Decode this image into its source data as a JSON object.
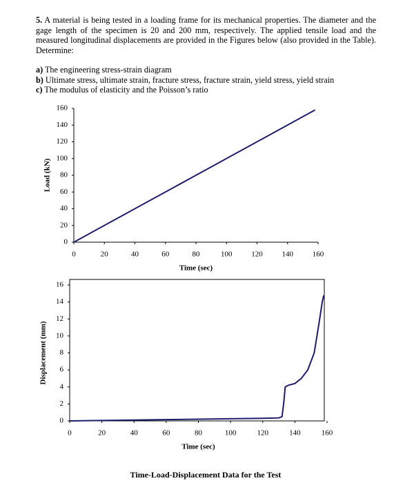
{
  "problem": {
    "number": "5.",
    "text": "A material is being tested in a loading frame for its mechanical properties. The diameter and the gage length of the specimen is 20 and 200 mm, respectively. The applied tensile load and the measured longitudinal displacements are provided in the Figures below (also provided in the Table). Determine:"
  },
  "items": [
    {
      "label": "a)",
      "text": "The engineering stress-strain diagram"
    },
    {
      "label": "b)",
      "text": "Ultimate stress, ultimate strain, fracture stress, fracture strain, yield stress, yield strain"
    },
    {
      "label": "c)",
      "text": "The modulus of elasticity and the Poisson’s ratio"
    }
  ],
  "chart_data": [
    {
      "type": "line",
      "x_label": "Time (sec)",
      "y_label": "Load (kN)",
      "x": [
        0,
        158
      ],
      "values": [
        0,
        158
      ],
      "color": "#1c1c6b",
      "xlim": [
        0,
        160
      ],
      "xticks": [
        0,
        20,
        40,
        60,
        80,
        100,
        120,
        140,
        160
      ],
      "ylim": [
        0,
        160
      ],
      "yticks": [
        0,
        20,
        40,
        60,
        80,
        100,
        120,
        140,
        160
      ],
      "frame": false
    },
    {
      "type": "line",
      "x_label": "Time (sec)",
      "y_label": "Displacement (mm)",
      "x": [
        0,
        20,
        40,
        60,
        80,
        100,
        120,
        130,
        132,
        133,
        134,
        136,
        140,
        144,
        148,
        152,
        155,
        157,
        158
      ],
      "values": [
        0,
        0.05,
        0.1,
        0.15,
        0.2,
        0.25,
        0.3,
        0.35,
        0.5,
        2,
        4,
        4.2,
        4.4,
        5,
        6,
        8,
        11.5,
        14,
        14.8
      ],
      "color": "#1c1c6b",
      "xlim": [
        0,
        160
      ],
      "xticks": [
        0,
        20,
        40,
        60,
        80,
        100,
        120,
        140,
        160
      ],
      "ylim": [
        0,
        16
      ],
      "yticks": [
        0,
        2,
        4,
        6,
        8,
        10,
        12,
        14,
        16
      ],
      "frame": true
    }
  ],
  "footer": "Time-Load-Displacement Data for the Test"
}
